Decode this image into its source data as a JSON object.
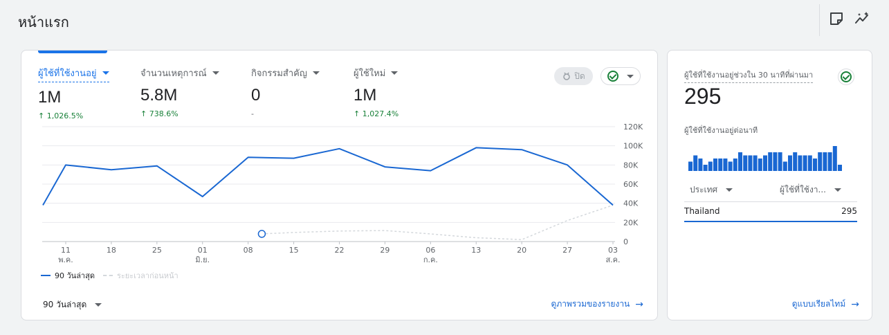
{
  "page": {
    "title": "หน้าแรก"
  },
  "toolbar": {
    "icons": [
      "note-icon",
      "insights-icon"
    ]
  },
  "main_card": {
    "metrics": [
      {
        "label": "ผู้ใช้ที่ใช้งานอยู่",
        "value": "1M",
        "change": "1,026.5%",
        "change_arrow": "↑",
        "active": true
      },
      {
        "label": "จำนวนเหตุการณ์",
        "value": "5.8M",
        "change": "738.6%",
        "change_arrow": "↑",
        "active": false
      },
      {
        "label": "กิจกรรมสำคัญ",
        "value": "0",
        "change": "-",
        "change_arrow": "",
        "active": false
      },
      {
        "label": "ผู้ใช้ใหม่",
        "value": "1M",
        "change": "1,027.4%",
        "change_arrow": "↑",
        "active": false
      }
    ],
    "pill_off": {
      "label": "ปิด"
    },
    "legend": {
      "current": "90 วันล่าสุด",
      "previous": "ระยะเวลาก่อนหน้า"
    },
    "range_select": {
      "label": "90 วันล่าสุด"
    },
    "link": {
      "label": "ดูภาพรวมของรายงาน"
    }
  },
  "chart_data": {
    "type": "line",
    "x_ticks": [
      {
        "day": "11",
        "month": "พ.ค."
      },
      {
        "day": "18",
        "month": ""
      },
      {
        "day": "25",
        "month": ""
      },
      {
        "day": "01",
        "month": "มิ.ย."
      },
      {
        "day": "08",
        "month": ""
      },
      {
        "day": "15",
        "month": ""
      },
      {
        "day": "22",
        "month": ""
      },
      {
        "day": "29",
        "month": ""
      },
      {
        "day": "06",
        "month": "ก.ค."
      },
      {
        "day": "13",
        "month": ""
      },
      {
        "day": "20",
        "month": ""
      },
      {
        "day": "27",
        "month": ""
      },
      {
        "day": "03",
        "month": "ส.ค."
      }
    ],
    "y_ticks": [
      "120K",
      "100K",
      "80K",
      "60K",
      "40K",
      "20K",
      "0"
    ],
    "ylim": [
      0,
      120000
    ],
    "series": [
      {
        "name": "90 วันล่าสุด",
        "color": "#1967d2",
        "points": [
          [
            -0.5,
            38000
          ],
          [
            0,
            80000
          ],
          [
            1,
            75000
          ],
          [
            2,
            79000
          ],
          [
            3,
            47000
          ],
          [
            4,
            88000
          ],
          [
            5,
            87000
          ],
          [
            6,
            97000
          ],
          [
            7,
            78000
          ],
          [
            8,
            74000
          ],
          [
            9,
            98000
          ],
          [
            10,
            96000
          ],
          [
            11,
            80000
          ],
          [
            12,
            38000
          ]
        ]
      },
      {
        "name": "ระยะเวลาก่อนหน้า",
        "color": "#d4d8dc",
        "points": [
          [
            4.3,
            8000
          ],
          [
            5,
            9500
          ],
          [
            6,
            11000
          ],
          [
            7,
            11500
          ],
          [
            8,
            8000
          ],
          [
            9,
            4000
          ],
          [
            10,
            2000
          ],
          [
            11,
            22000
          ],
          [
            12,
            38000
          ]
        ]
      }
    ],
    "marker": {
      "x": 4.3,
      "y": 8000
    }
  },
  "realtime": {
    "label": "ผู้ใช้ที่ใช้งานอยู่ช่วงใน 30 นาทีที่ผ่านมา",
    "value": "295",
    "sub_label": "ผู้ใช้ที่ใช้งานอยู่ต่อนาที",
    "bar_color": "#1967d2",
    "bars": [
      3,
      5,
      4,
      2,
      3,
      4,
      4,
      4,
      3,
      4,
      6,
      5,
      5,
      5,
      4,
      5,
      6,
      6,
      6,
      3,
      5,
      6,
      5,
      5,
      5,
      4,
      6,
      6,
      6,
      8,
      2
    ],
    "col_country": "ประเทศ",
    "col_users": "ผู้ใช้ที่ใช้งา...",
    "rows": [
      {
        "country": "Thailand",
        "users": "295"
      }
    ],
    "link": {
      "label": "ดูแบบเรียลไทม์"
    }
  }
}
